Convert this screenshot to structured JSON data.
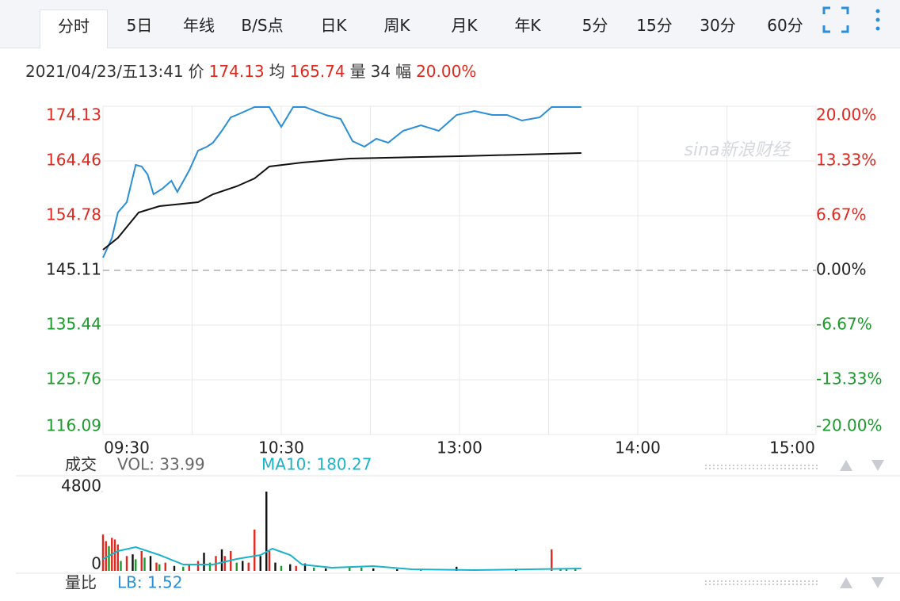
{
  "tabs": [
    "分时",
    "5日",
    "年线",
    "B/S点",
    "日K",
    "周K",
    "月K",
    "年K",
    "5分",
    "15分",
    "30分",
    "60分"
  ],
  "info": {
    "datetime": "2021/04/23/五13:41",
    "price_label": "价",
    "price": 174.13,
    "avg_label": "均",
    "avg": 165.74,
    "vol_label": "量",
    "vol": 34,
    "amp_label": "幅",
    "amp": "20.00%"
  },
  "chart_data": {
    "type": "line",
    "watermark": "sina新浪财经",
    "xlim": [
      0,
      240
    ],
    "xticks": [
      {
        "value": 0,
        "label": "09:30"
      },
      {
        "value": 60,
        "label": "10:30"
      },
      {
        "value": 120,
        "label": "13:00"
      },
      {
        "value": 180,
        "label": "14:00"
      },
      {
        "value": 240,
        "label": "15:00"
      }
    ],
    "xgrid": [
      30,
      90,
      150,
      210
    ],
    "ylim": [
      116.09,
      174.13
    ],
    "yticks": [
      174.13,
      164.46,
      154.78,
      145.11,
      135.44,
      125.76,
      116.09
    ],
    "y2lim": [
      -20,
      20
    ],
    "y2ticks": [
      {
        "value": 20,
        "label": "20.00%"
      },
      {
        "value": 13.33,
        "label": "13.33%"
      },
      {
        "value": 6.67,
        "label": "6.67%"
      },
      {
        "value": 0,
        "label": "0.00%"
      },
      {
        "value": -6.67,
        "label": "-6.67%"
      },
      {
        "value": -13.33,
        "label": "-13.33%"
      },
      {
        "value": -20,
        "label": "-20.00%"
      }
    ],
    "series": [
      {
        "color": "#2a8fd6",
        "x": [
          0,
          3,
          5,
          8,
          11,
          13,
          15,
          17,
          20,
          23,
          25,
          29,
          32,
          35,
          37,
          40,
          43,
          45,
          51,
          56,
          60,
          64,
          68,
          75,
          80,
          84,
          88,
          92,
          96,
          101,
          107,
          113,
          119,
          125,
          131,
          136,
          141,
          147,
          151,
          161
        ],
        "values": [
          147.35,
          150.86,
          155.34,
          157.17,
          163.76,
          163.48,
          162.07,
          158.57,
          159.55,
          160.95,
          158.99,
          162.77,
          166.28,
          166.98,
          167.68,
          169.78,
          172.17,
          172.59,
          173.99,
          173.99,
          170.48,
          173.99,
          173.99,
          172.59,
          171.89,
          167.96,
          166.98,
          168.38,
          167.68,
          169.78,
          170.77,
          169.78,
          172.59,
          173.29,
          172.59,
          172.59,
          171.61,
          172.17,
          173.99,
          173.99
        ]
      },
      {
        "color": "#111111",
        "x": [
          0,
          5,
          12,
          19,
          32,
          37,
          45,
          51,
          56,
          67,
          83,
          120,
          161
        ],
        "values": [
          148.75,
          150.86,
          155.34,
          156.46,
          157.17,
          158.57,
          159.97,
          161.37,
          163.48,
          164.18,
          164.88,
          165.3,
          165.86
        ]
      }
    ]
  },
  "volume_chart": {
    "type": "bar",
    "title": "成交",
    "vol_label": "VOL: 33.99",
    "ma_label": "MA10: 180.27",
    "ratio_title": "量比",
    "ratio_label": "LB: 1.52",
    "xlim": [
      0,
      240
    ],
    "ylim": [
      0,
      4800
    ],
    "yticks": [
      0,
      4800
    ],
    "x": [
      0,
      1,
      2,
      3,
      4,
      5,
      6,
      8,
      10,
      11,
      13,
      14,
      16,
      18,
      19,
      21,
      24,
      27,
      29,
      32,
      34,
      36,
      38,
      40,
      41,
      43,
      45,
      47,
      49,
      51,
      53,
      55,
      56,
      58,
      60,
      63,
      65,
      68,
      71,
      75,
      83,
      87,
      91,
      99,
      107,
      119,
      125,
      139,
      151,
      154,
      156,
      159
    ],
    "values": [
      2200,
      1800,
      1500,
      2000,
      1900,
      1600,
      600,
      900,
      1000,
      700,
      1200,
      800,
      900,
      500,
      400,
      500,
      300,
      250,
      400,
      600,
      1100,
      500,
      900,
      1300,
      900,
      1200,
      500,
      600,
      500,
      2500,
      900,
      4800,
      1200,
      500,
      300,
      400,
      300,
      450,
      200,
      150,
      250,
      200,
      150,
      100,
      120,
      250,
      100,
      100,
      1300,
      100,
      100,
      100
    ],
    "colors": [
      "#e0281e",
      "#e0281e",
      "#1a9a2a",
      "#e0281e",
      "#e0281e",
      "#e0281e",
      "#1a9a2a",
      "#e0281e",
      "#111111",
      "#1a9a2a",
      "#e0281e",
      "#1a9a2a",
      "#111111",
      "#e0281e",
      "#1a9a2a",
      "#e0281e",
      "#111111",
      "#1a9a2a",
      "#e0281e",
      "#e0281e",
      "#111111",
      "#1a9a2a",
      "#e0281e",
      "#111111",
      "#e0281e",
      "#e0281e",
      "#1a9a2a",
      "#111111",
      "#e0281e",
      "#e0281e",
      "#111111",
      "#111111",
      "#e0281e",
      "#111111",
      "#1a9a2a",
      "#111111",
      "#e0281e",
      "#111111",
      "#1a9a2a",
      "#111111",
      "#1a9a2a",
      "#1a9a2a",
      "#111111",
      "#111111",
      "#1a9a2a",
      "#111111",
      "#1a9a2a",
      "#111111",
      "#e0281e",
      "#1a9a2a",
      "#1a9a2a",
      "#1a9a2a"
    ],
    "ma": {
      "color": "#1bb3c9",
      "x": [
        0,
        5,
        11,
        19,
        27,
        37,
        45,
        53,
        57,
        63,
        67,
        77,
        91,
        104,
        125,
        161
      ],
      "values": [
        720,
        1200,
        1440,
        960,
        384,
        384,
        720,
        960,
        1344,
        960,
        384,
        192,
        288,
        96,
        48,
        144
      ]
    }
  }
}
